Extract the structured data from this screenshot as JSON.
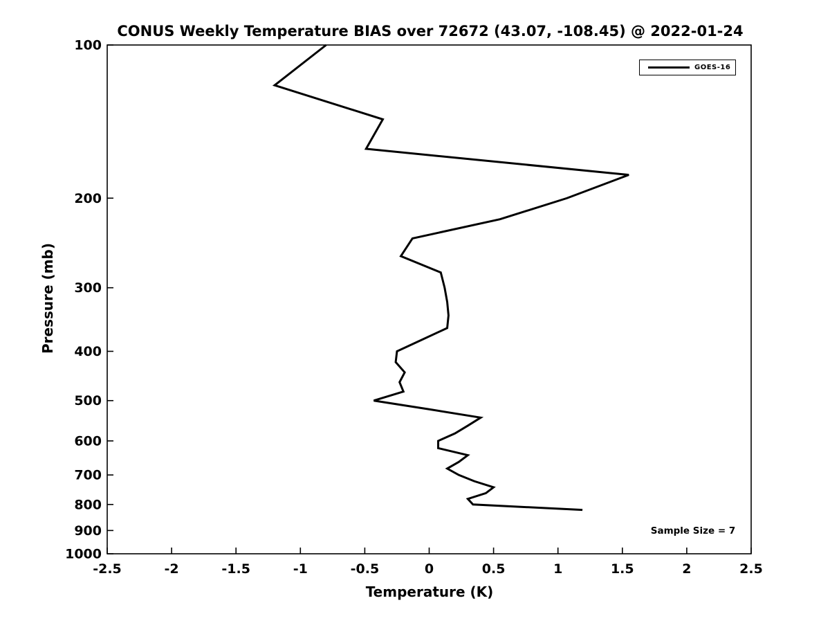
{
  "figure": {
    "background": "#ffffff",
    "frame_color": "#000000"
  },
  "chart_data": {
    "type": "line",
    "title": "CONUS Weekly Temperature BIAS over 72672 (43.07, -108.45) @ 2022-01-24",
    "xlabel": "Temperature (K)",
    "ylabel": "Pressure (mb)",
    "xlim": [
      -2.5,
      2.5
    ],
    "ylim": [
      1000,
      100
    ],
    "yscale": "log",
    "grid": false,
    "x_ticks": [
      -2.5,
      -2,
      -1.5,
      -1,
      -0.5,
      0,
      0.5,
      1,
      1.5,
      2,
      2.5
    ],
    "x_tick_labels": [
      "-2.5",
      "-2",
      "-1.5",
      "-1",
      "-0.5",
      "0",
      "0.5",
      "1",
      "1.5",
      "2",
      "2.5"
    ],
    "y_ticks": [
      100,
      200,
      300,
      400,
      500,
      600,
      700,
      800,
      900,
      1000
    ],
    "y_tick_labels": [
      "100",
      "200",
      "300",
      "400",
      "500",
      "600",
      "700",
      "800",
      "900",
      "1000"
    ],
    "legend": {
      "position": "upper right",
      "entries": [
        "GOES-16"
      ]
    },
    "series": [
      {
        "name": "GOES-16",
        "color": "#000000",
        "line_width": 3,
        "pressure_mb": [
          100,
          120,
          140,
          160,
          180,
          200,
          220,
          240,
          260,
          280,
          300,
          320,
          340,
          360,
          380,
          400,
          420,
          440,
          460,
          480,
          500,
          520,
          540,
          560,
          580,
          600,
          620,
          640,
          660,
          680,
          700,
          720,
          740,
          760,
          780,
          800,
          820
        ],
        "temperature_k": [
          -0.8,
          -1.2,
          -0.36,
          -0.49,
          1.55,
          1.07,
          0.55,
          -0.13,
          -0.22,
          0.09,
          0.12,
          0.14,
          0.15,
          0.14,
          -0.06,
          -0.25,
          -0.26,
          -0.19,
          -0.23,
          -0.2,
          -0.43,
          0.0,
          0.4,
          0.3,
          0.2,
          0.07,
          0.07,
          0.3,
          0.23,
          0.14,
          0.23,
          0.35,
          0.5,
          0.44,
          0.3,
          0.34,
          1.19
        ]
      }
    ],
    "annotations": [
      {
        "text": "Sample Size = 7"
      }
    ]
  }
}
